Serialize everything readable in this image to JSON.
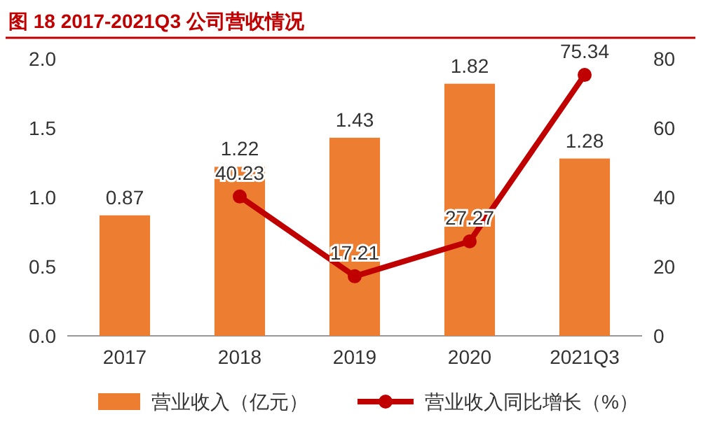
{
  "chart_data": {
    "type": "bar",
    "title": "图 18 2017-2021Q3 公司营收情况",
    "categories": [
      "2017",
      "2018",
      "2019",
      "2020",
      "2021Q3"
    ],
    "series": [
      {
        "name": "营业收入（亿元）",
        "color": "#ed7d31",
        "values": [
          0.87,
          1.22,
          1.43,
          1.82,
          1.28
        ]
      },
      {
        "name": "营业收入同比增长（%）",
        "type": "line",
        "axis": "y2",
        "color": "#c00000",
        "values": [
          null,
          40.23,
          17.21,
          27.27,
          75.34
        ]
      }
    ],
    "ylim": [
      0,
      2
    ],
    "yticks": [
      {
        "value": 0,
        "label": "0.0"
      },
      {
        "value": 0.5,
        "label": "0.5"
      },
      {
        "value": 1,
        "label": "1.0"
      },
      {
        "value": 1.5,
        "label": "1.5"
      },
      {
        "value": 2,
        "label": "2.0"
      }
    ],
    "y2lim": [
      0,
      80
    ],
    "y2ticks": [
      0,
      20,
      40,
      60,
      80
    ],
    "marker": "circle",
    "data_labels": true,
    "legend": "bottom"
  }
}
